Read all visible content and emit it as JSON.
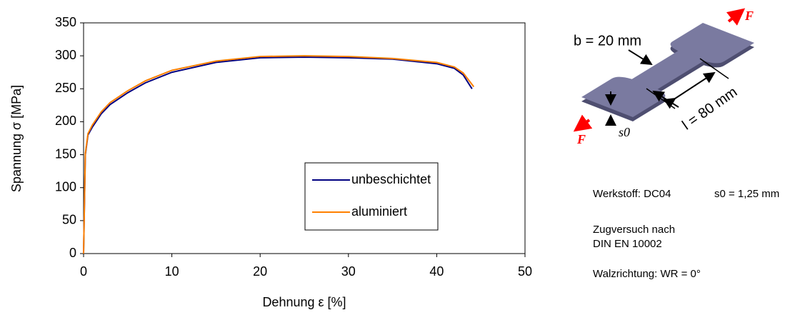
{
  "chart_data": {
    "type": "line",
    "x_label": "Dehnung ε [%]",
    "y_label": "Spannung σ [MPa]",
    "xlim": [
      0,
      50
    ],
    "xticks": [
      0,
      10,
      20,
      30,
      40,
      50
    ],
    "ylim": [
      0,
      350
    ],
    "yticks": [
      0,
      50,
      100,
      150,
      200,
      250,
      300,
      350
    ],
    "grid": false,
    "legend": "lower right",
    "series": [
      {
        "name": "unbeschichtet",
        "color": "#000080",
        "x": [
          0,
          0.2,
          0.5,
          1,
          2,
          3,
          5,
          7,
          10,
          15,
          20,
          25,
          30,
          35,
          40,
          42,
          43,
          44
        ],
        "values": [
          0,
          150,
          180,
          192,
          212,
          226,
          244,
          259,
          275,
          290,
          297,
          298,
          297,
          295,
          288,
          281,
          271,
          250
        ]
      },
      {
        "name": "aluminiert",
        "color": "#ff8000",
        "x": [
          0,
          0.2,
          0.5,
          1,
          2,
          3,
          5,
          7,
          10,
          15,
          20,
          25,
          30,
          35,
          40,
          42,
          43,
          44.2
        ],
        "values": [
          0,
          152,
          182,
          195,
          215,
          229,
          247,
          262,
          278,
          292,
          299,
          300,
          299,
          296,
          290,
          283,
          274,
          253
        ]
      }
    ]
  },
  "specimen": {
    "width_label": "b = 20 mm",
    "length_label": "l = 80 mm",
    "thickness_label": "s0",
    "force_top": "F",
    "force_bottom": "F",
    "material": "Werkstoff: DC04",
    "material_thickness": "s0 = 1,25 mm",
    "test_line1": "Zugversuch nach",
    "test_line2": "DIN EN 10002",
    "rolling": "Walzrichtung: WR = 0°"
  }
}
